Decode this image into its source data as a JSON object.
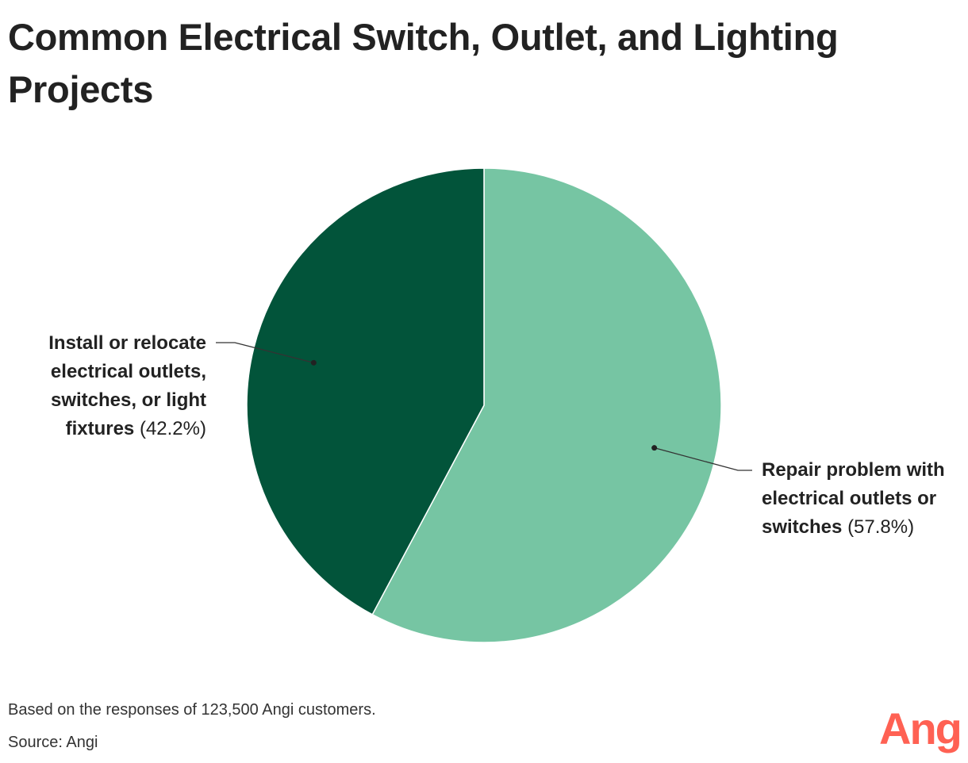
{
  "chart_data": {
    "type": "pie",
    "title": "Common Electrical Switch, Outlet, and Lighting Projects",
    "slices": [
      {
        "label": "Repair problem with electrical outlets or switches",
        "value": 57.8,
        "value_label": "(57.8%)",
        "color": "#76c5a3"
      },
      {
        "label": "Install or relocate electrical outlets, switches, or light fixtures",
        "value": 42.2,
        "value_label": "(42.2%)",
        "color": "#02543a"
      }
    ],
    "legend": "none"
  },
  "footer": {
    "note": "Based on the responses of 123,500 Angi customers.",
    "source": "Source: Angi"
  },
  "brand": {
    "logo_text": "Angi",
    "logo_color": "#ff6153"
  }
}
